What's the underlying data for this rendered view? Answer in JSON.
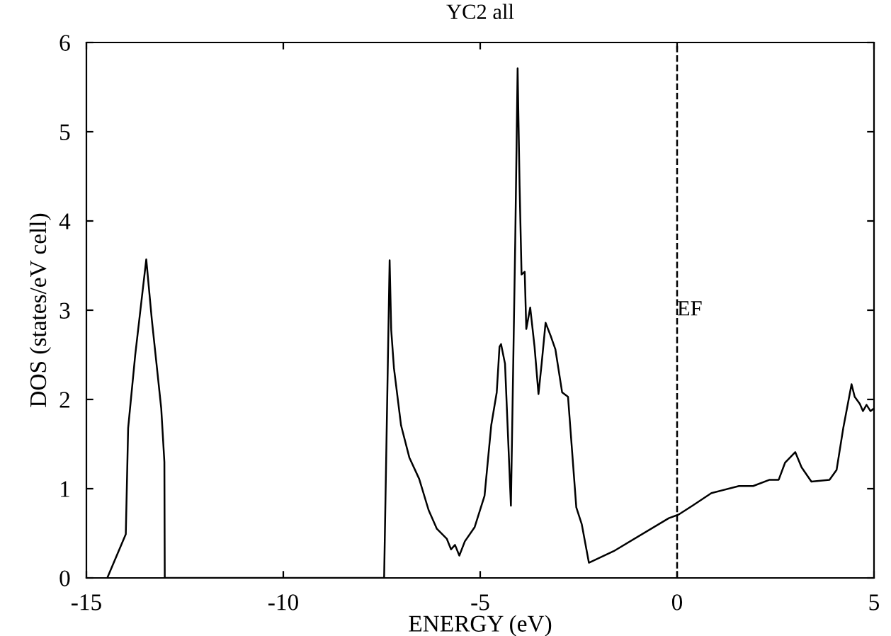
{
  "chart_data": {
    "type": "line",
    "title": "YC2 all",
    "xlabel": "ENERGY (eV)",
    "ylabel": "DOS (states/eV cell)",
    "xlim": [
      -15,
      5
    ],
    "ylim": [
      0,
      6
    ],
    "xticks": [
      -15,
      -10,
      -5,
      0,
      5
    ],
    "yticks": [
      0,
      1,
      2,
      3,
      4,
      5,
      6
    ],
    "grid": false,
    "legend": false,
    "ref_lines": [
      {
        "axis": "x",
        "value": 0,
        "label": "EF",
        "color": "#000000",
        "line_style": "dashed"
      }
    ],
    "series": [
      {
        "color": "#000000",
        "x": [
          -14.47,
          -14.0,
          -13.94,
          -13.76,
          -13.48,
          -13.34,
          -13.1,
          -13.02,
          -13.01,
          -7.46,
          -7.44,
          -7.3,
          -7.26,
          -7.19,
          -7.01,
          -6.8,
          -6.55,
          -6.31,
          -6.1,
          -5.85,
          -5.74,
          -5.64,
          -5.53,
          -5.39,
          -5.14,
          -4.89,
          -4.72,
          -4.58,
          -4.51,
          -4.47,
          -4.37,
          -4.22,
          -4.11,
          -4.05,
          -4.0,
          -3.95,
          -3.87,
          -3.83,
          -3.73,
          -3.62,
          -3.52,
          -3.44,
          -3.34,
          -3.2,
          -3.09,
          -2.92,
          -2.77,
          -2.56,
          -2.42,
          -2.24,
          -1.61,
          -0.21,
          0.04,
          0.39,
          0.87,
          1.57,
          1.93,
          2.35,
          2.58,
          2.74,
          3.0,
          3.16,
          3.41,
          3.87,
          4.05,
          4.22,
          4.43,
          4.51,
          4.64,
          4.72,
          4.81,
          4.91,
          5.0
        ],
        "values": [
          0,
          0.49,
          1.68,
          2.5,
          3.57,
          2.9,
          1.9,
          1.3,
          0,
          0,
          0,
          3.56,
          2.78,
          2.35,
          1.71,
          1.35,
          1.11,
          0.76,
          0.55,
          0.44,
          0.32,
          0.37,
          0.25,
          0.41,
          0.57,
          0.92,
          1.71,
          2.08,
          2.59,
          2.62,
          2.4,
          0.81,
          3.78,
          5.71,
          4.4,
          3.4,
          3.43,
          2.79,
          3.03,
          2.59,
          2.06,
          2.4,
          2.86,
          2.7,
          2.56,
          2.08,
          2.03,
          0.79,
          0.6,
          0.17,
          0.3,
          0.67,
          0.71,
          0.81,
          0.95,
          1.03,
          1.03,
          1.1,
          1.1,
          1.29,
          1.41,
          1.24,
          1.08,
          1.1,
          1.21,
          1.68,
          2.17,
          2.03,
          1.95,
          1.87,
          1.94,
          1.87,
          1.9
        ]
      }
    ]
  }
}
